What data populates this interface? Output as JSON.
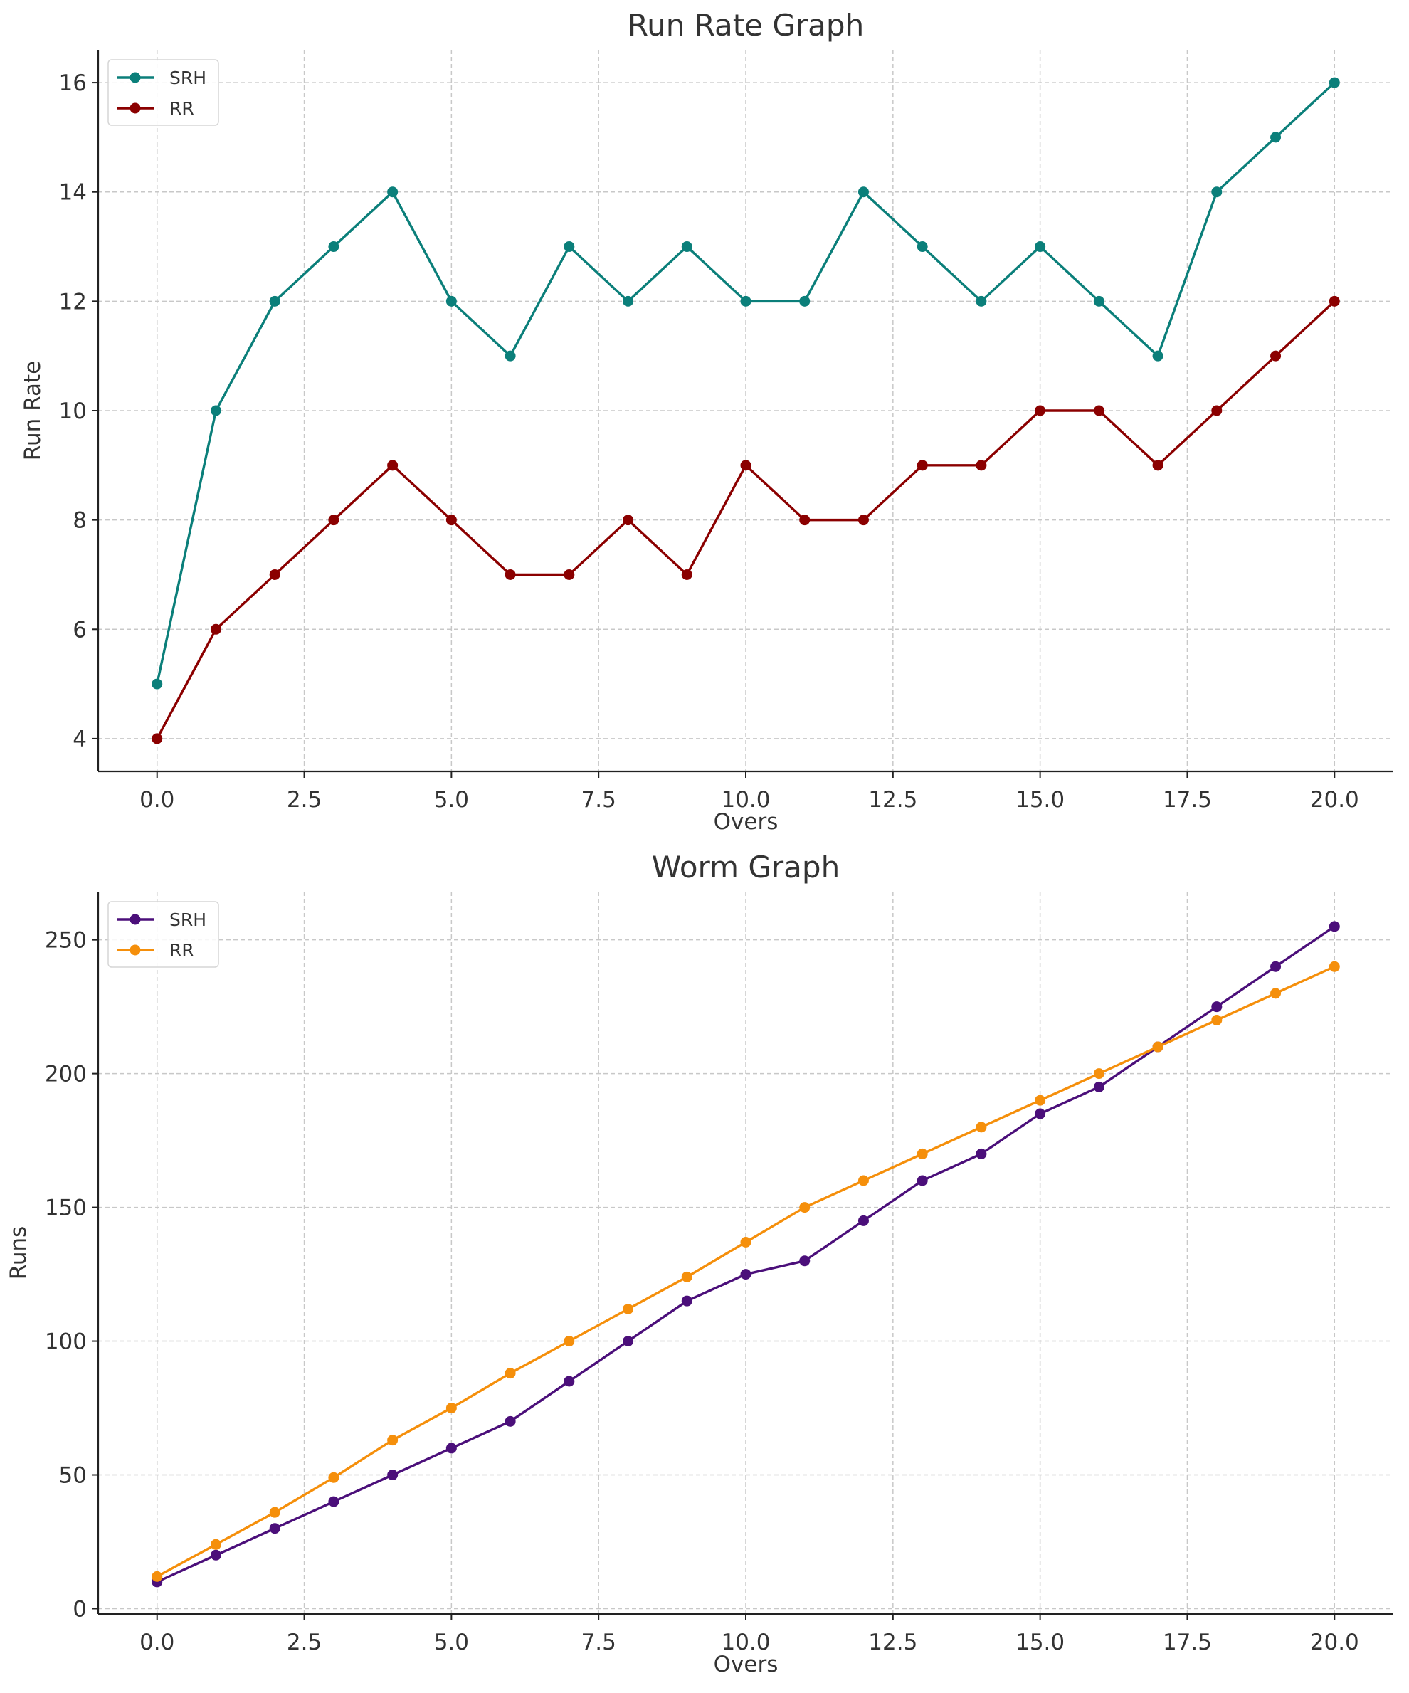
{
  "chart_data": [
    {
      "type": "line",
      "title": "Run Rate Graph",
      "xlabel": "Overs",
      "ylabel": "Run Rate",
      "x": [
        0,
        1,
        2,
        3,
        4,
        5,
        6,
        7,
        8,
        9,
        10,
        11,
        12,
        13,
        14,
        15,
        16,
        17,
        18,
        19,
        20
      ],
      "xlim": [
        -1,
        21
      ],
      "ylim": [
        3.4,
        16.6
      ],
      "xticks": [
        0,
        2.5,
        5,
        7.5,
        10,
        12.5,
        15,
        17.5,
        20
      ],
      "xtick_labels": [
        "0.0",
        "2.5",
        "5.0",
        "7.5",
        "10.0",
        "12.5",
        "15.0",
        "17.5",
        "20.0"
      ],
      "yticks": [
        4,
        6,
        8,
        10,
        12,
        14,
        16
      ],
      "ytick_labels": [
        "4",
        "6",
        "8",
        "10",
        "12",
        "14",
        "16"
      ],
      "grid": true,
      "legend_position": "top-left",
      "series": [
        {
          "name": "SRH",
          "color": "#0b7f7a",
          "values": [
            5,
            10,
            12,
            13,
            14,
            12,
            11,
            13,
            12,
            13,
            12,
            12,
            14,
            13,
            12,
            13,
            12,
            11,
            14,
            15,
            16
          ]
        },
        {
          "name": "RR",
          "color": "#8b0000",
          "values": [
            4,
            6,
            7,
            8,
            9,
            8,
            7,
            7,
            8,
            7,
            9,
            8,
            8,
            9,
            9,
            10,
            10,
            9,
            10,
            11,
            12
          ]
        }
      ]
    },
    {
      "type": "line",
      "title": "Worm Graph",
      "xlabel": "Overs",
      "ylabel": "Runs",
      "x": [
        0,
        1,
        2,
        3,
        4,
        5,
        6,
        7,
        8,
        9,
        10,
        11,
        12,
        13,
        14,
        15,
        16,
        17,
        18,
        19,
        20
      ],
      "xlim": [
        -1,
        21
      ],
      "ylim": [
        -2,
        268
      ],
      "xticks": [
        0,
        2.5,
        5,
        7.5,
        10,
        12.5,
        15,
        17.5,
        20
      ],
      "xtick_labels": [
        "0.0",
        "2.5",
        "5.0",
        "7.5",
        "10.0",
        "12.5",
        "15.0",
        "17.5",
        "20.0"
      ],
      "yticks": [
        0,
        50,
        100,
        150,
        200,
        250
      ],
      "ytick_labels": [
        "0",
        "50",
        "100",
        "150",
        "200",
        "250"
      ],
      "grid": true,
      "legend_position": "top-left",
      "series": [
        {
          "name": "SRH",
          "color": "#4b0f7a",
          "values": [
            10,
            20,
            30,
            40,
            50,
            60,
            70,
            85,
            100,
            115,
            125,
            130,
            145,
            160,
            170,
            185,
            195,
            210,
            225,
            240,
            255
          ]
        },
        {
          "name": "RR",
          "color": "#f58f0b",
          "values": [
            12,
            24,
            36,
            49,
            63,
            75,
            88,
            100,
            112,
            124,
            137,
            150,
            160,
            170,
            180,
            190,
            200,
            210,
            220,
            230,
            240
          ]
        }
      ]
    }
  ]
}
